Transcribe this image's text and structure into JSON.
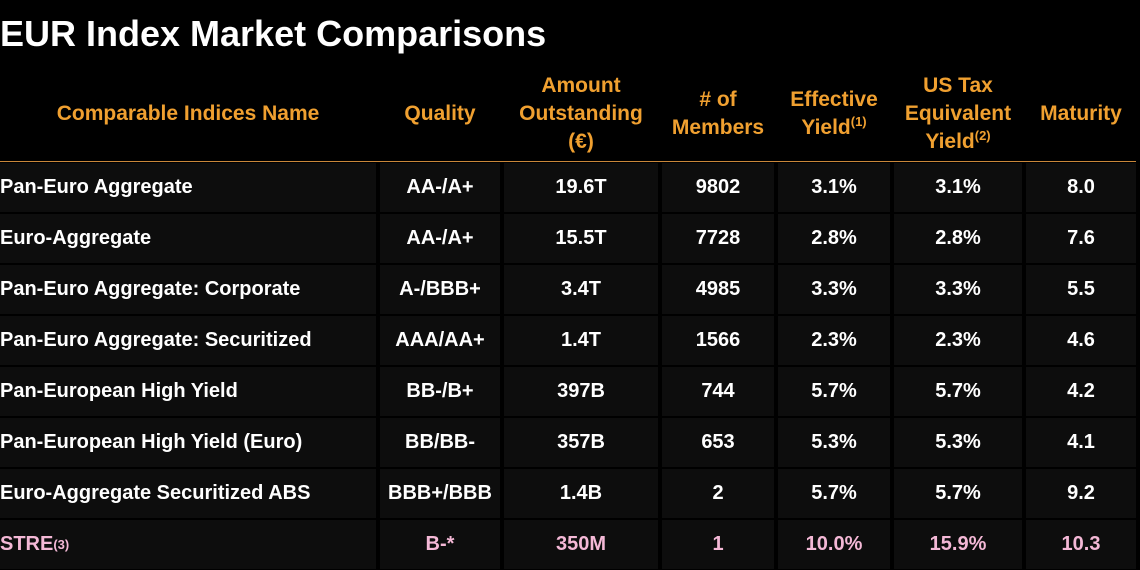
{
  "title": "EUR Index Market Comparisons",
  "colors": {
    "background": "#000000",
    "header_text": "#f0a030",
    "body_text": "#ffffff",
    "highlight_text": "#f4b8d6"
  },
  "headers": {
    "name": "Comparable Indices Name",
    "quality": "Quality",
    "amount": [
      "Amount",
      "Outstanding",
      "(€)"
    ],
    "members": [
      "# of",
      "Members"
    ],
    "yield": [
      "Effective",
      "Yield"
    ],
    "yield_note": "(1)",
    "tax": [
      "US Tax",
      "Equivalent",
      "Yield"
    ],
    "tax_note": "(2)",
    "maturity": "Maturity"
  },
  "rows": [
    {
      "name": "Pan-Euro Aggregate",
      "quality": "AA-/A+",
      "amount": "19.6T",
      "members": "9802",
      "yield": "3.1%",
      "tax": "3.1%",
      "maturity": "8.0"
    },
    {
      "name": "Euro-Aggregate",
      "quality": "AA-/A+",
      "amount": "15.5T",
      "members": "7728",
      "yield": "2.8%",
      "tax": "2.8%",
      "maturity": "7.6"
    },
    {
      "name": "Pan-Euro Aggregate: Corporate",
      "quality": "A-/BBB+",
      "amount": "3.4T",
      "members": "4985",
      "yield": "3.3%",
      "tax": "3.3%",
      "maturity": "5.5"
    },
    {
      "name": "Pan-Euro Aggregate: Securitized",
      "quality": "AAA/AA+",
      "amount": "1.4T",
      "members": "1566",
      "yield": "2.3%",
      "tax": "2.3%",
      "maturity": "4.6"
    },
    {
      "name": "Pan-European High Yield",
      "quality": "BB-/B+",
      "amount": "397B",
      "members": "744",
      "yield": "5.7%",
      "tax": "5.7%",
      "maturity": "4.2"
    },
    {
      "name": "Pan-European High Yield (Euro)",
      "quality": "BB/BB-",
      "amount": "357B",
      "members": "653",
      "yield": "5.3%",
      "tax": "5.3%",
      "maturity": "4.1"
    },
    {
      "name": "Euro-Aggregate Securitized ABS",
      "quality": "BBB+/BBB",
      "amount": "1.4B",
      "members": "2",
      "yield": "5.7%",
      "tax": "5.7%",
      "maturity": "9.2"
    },
    {
      "name": "STRE",
      "name_note": "(3)",
      "quality": "B-*",
      "amount": "350M",
      "members": "1",
      "yield": "10.0%",
      "tax": "15.9%",
      "maturity": "10.3",
      "highlight": true
    }
  ]
}
